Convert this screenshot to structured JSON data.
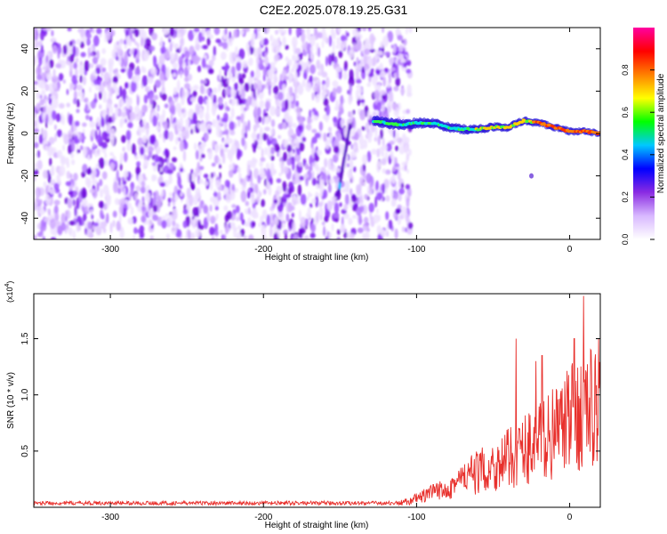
{
  "title": "C2E2.2025.078.19.25.G31",
  "chart_data": [
    {
      "type": "heatmap",
      "xlabel": "Height of straight line (km)",
      "ylabel": "Frequency (Hz)",
      "xlim": [
        -350,
        20
      ],
      "ylim": [
        -50,
        50
      ],
      "x_ticks": [
        -300,
        -200,
        -100,
        0
      ],
      "y_ticks": [
        -40,
        -20,
        0,
        20,
        40
      ],
      "noise_region_x": [
        -350,
        -110
      ],
      "signal_track": [
        {
          "x": -128,
          "y": 6
        },
        {
          "x": -120,
          "y": 5
        },
        {
          "x": -110,
          "y": 4
        },
        {
          "x": -100,
          "y": 5
        },
        {
          "x": -90,
          "y": 5
        },
        {
          "x": -80,
          "y": 3
        },
        {
          "x": -70,
          "y": 2
        },
        {
          "x": -60,
          "y": 2
        },
        {
          "x": -50,
          "y": 3
        },
        {
          "x": -40,
          "y": 3
        },
        {
          "x": -30,
          "y": 6
        },
        {
          "x": -20,
          "y": 5
        },
        {
          "x": -10,
          "y": 3
        },
        {
          "x": 0,
          "y": 1
        },
        {
          "x": 10,
          "y": 1
        },
        {
          "x": 20,
          "y": 0
        }
      ],
      "colorbar": {
        "label": "Normalized spectral amplitude",
        "range": [
          0.0,
          1.0
        ],
        "ticks": [
          "0.0",
          "0.2",
          "0.4",
          "0.6",
          "0.8"
        ],
        "colors": [
          "#ffffff",
          "#d8b8ff",
          "#8a2be2",
          "#0000ff",
          "#00c8ff",
          "#00ff00",
          "#ffff00",
          "#ff8000",
          "#ff0000",
          "#ff00a0"
        ]
      }
    },
    {
      "type": "line",
      "xlabel": "Height of straight line (km)",
      "ylabel": "SNR (10 * v/v)",
      "exponent_label": "(x10",
      "exponent_power": "4",
      "exponent_close": ")",
      "xlim": [
        -350,
        20
      ],
      "ylim": [
        0,
        1.9
      ],
      "x_ticks": [
        -300,
        -200,
        -100,
        0
      ],
      "y_ticks": [
        "0.5",
        "1.0",
        "1.5"
      ],
      "color": "#e8302c",
      "envelope": [
        {
          "x": -350,
          "y": 0.04
        },
        {
          "x": -115,
          "y": 0.04
        },
        {
          "x": -105,
          "y": 0.08
        },
        {
          "x": -95,
          "y": 0.15
        },
        {
          "x": -85,
          "y": 0.22
        },
        {
          "x": -75,
          "y": 0.32
        },
        {
          "x": -65,
          "y": 0.42
        },
        {
          "x": -55,
          "y": 0.5
        },
        {
          "x": -45,
          "y": 0.58
        },
        {
          "x": -35,
          "y": 0.7
        },
        {
          "x": -25,
          "y": 0.82
        },
        {
          "x": -15,
          "y": 0.92
        },
        {
          "x": -5,
          "y": 1.05
        },
        {
          "x": 5,
          "y": 1.22
        },
        {
          "x": 15,
          "y": 1.32
        },
        {
          "x": 20,
          "y": 1.35
        }
      ],
      "spikes": [
        {
          "x": -35,
          "y": 1.5
        },
        {
          "x": -22,
          "y": 1.3
        },
        {
          "x": -18,
          "y": 1.35
        },
        {
          "x": 3,
          "y": 1.5
        },
        {
          "x": 9,
          "y": 1.88
        },
        {
          "x": 19,
          "y": 1.5
        }
      ]
    }
  ]
}
